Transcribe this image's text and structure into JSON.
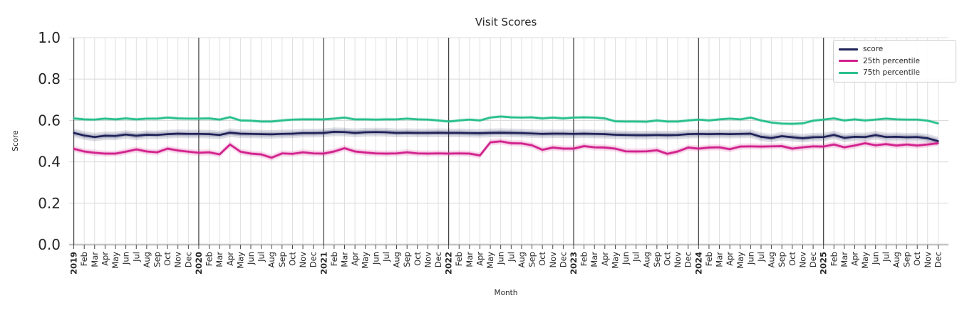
{
  "colors": {
    "background": "#ffffff",
    "grid": "#dcdcdc",
    "year_gridline": "#3c3c3c",
    "axis_baseline": "#c4c4c4",
    "tick_mark": "#333333",
    "text": "#262626",
    "legend_border": "#cccccc"
  },
  "chart_data": {
    "type": "line",
    "title": "Visit Scores",
    "xlabel": "Month",
    "ylabel": "Score",
    "ylim": [
      0.0,
      1.0
    ],
    "grid": true,
    "legend_position": "upper right",
    "y_ticks": [
      0.0,
      0.2,
      0.4,
      0.6,
      0.8,
      1.0
    ],
    "y_tick_labels": [
      "0.0",
      "0.2",
      "0.4",
      "0.6",
      "0.8",
      "1.0"
    ],
    "year_start_indices": [
      0,
      12,
      24,
      36,
      48,
      60,
      72
    ],
    "x_tick_labels": [
      "2019",
      "Feb",
      "Mar",
      "Apr",
      "May",
      "Jun",
      "Jul",
      "Aug",
      "Sep",
      "Oct",
      "Nov",
      "Dec",
      "2020",
      "Feb",
      "Mar",
      "Apr",
      "May",
      "Jun",
      "Jul",
      "Aug",
      "Sep",
      "Oct",
      "Nov",
      "Dec",
      "2021",
      "Feb",
      "Mar",
      "Apr",
      "May",
      "Jun",
      "Jul",
      "Aug",
      "Sep",
      "Oct",
      "Nov",
      "Dec",
      "2022",
      "Feb",
      "Mar",
      "Apr",
      "May",
      "Jun",
      "Jul",
      "Aug",
      "Sep",
      "Oct",
      "Nov",
      "Dec",
      "2023",
      "Feb",
      "Mar",
      "Apr",
      "May",
      "Jun",
      "Jul",
      "Aug",
      "Sep",
      "Oct",
      "Nov",
      "Dec",
      "2024",
      "Feb",
      "Mar",
      "Apr",
      "May",
      "Jun",
      "Jul",
      "Aug",
      "Sep",
      "Oct",
      "Nov",
      "Dec",
      "2025",
      "Feb",
      "Mar",
      "Apr",
      "May",
      "Jun",
      "Jul",
      "Aug",
      "Sep",
      "Oct",
      "Nov",
      "Dec"
    ],
    "series": [
      {
        "name": "score",
        "color": "#1e2158",
        "band_halfwidth": 0.021,
        "values": [
          0.54,
          0.527,
          0.52,
          0.526,
          0.525,
          0.532,
          0.526,
          0.531,
          0.53,
          0.534,
          0.536,
          0.535,
          0.535,
          0.534,
          0.53,
          0.541,
          0.536,
          0.535,
          0.534,
          0.533,
          0.535,
          0.536,
          0.539,
          0.539,
          0.54,
          0.545,
          0.544,
          0.54,
          0.543,
          0.544,
          0.543,
          0.54,
          0.541,
          0.54,
          0.54,
          0.541,
          0.54,
          0.54,
          0.539,
          0.538,
          0.54,
          0.541,
          0.54,
          0.539,
          0.537,
          0.535,
          0.536,
          0.536,
          0.535,
          0.536,
          0.535,
          0.534,
          0.531,
          0.53,
          0.529,
          0.529,
          0.53,
          0.529,
          0.53,
          0.534,
          0.535,
          0.534,
          0.535,
          0.534,
          0.535,
          0.536,
          0.521,
          0.515,
          0.524,
          0.519,
          0.514,
          0.519,
          0.52,
          0.53,
          0.516,
          0.521,
          0.52,
          0.529,
          0.52,
          0.521,
          0.519,
          0.52,
          0.514,
          0.5
        ]
      },
      {
        "name": "25th percentile",
        "color": "#d2228d",
        "band_halfwidth": 0.015,
        "values": [
          0.463,
          0.45,
          0.444,
          0.44,
          0.44,
          0.449,
          0.46,
          0.45,
          0.446,
          0.464,
          0.455,
          0.449,
          0.444,
          0.446,
          0.436,
          0.484,
          0.449,
          0.44,
          0.436,
          0.42,
          0.441,
          0.439,
          0.446,
          0.441,
          0.44,
          0.45,
          0.466,
          0.45,
          0.445,
          0.441,
          0.44,
          0.441,
          0.446,
          0.441,
          0.44,
          0.441,
          0.44,
          0.441,
          0.44,
          0.431,
          0.494,
          0.499,
          0.49,
          0.489,
          0.48,
          0.458,
          0.469,
          0.464,
          0.464,
          0.476,
          0.47,
          0.469,
          0.464,
          0.451,
          0.45,
          0.451,
          0.456,
          0.439,
          0.45,
          0.469,
          0.464,
          0.469,
          0.47,
          0.461,
          0.474,
          0.475,
          0.474,
          0.475,
          0.476,
          0.464,
          0.47,
          0.475,
          0.474,
          0.484,
          0.47,
          0.479,
          0.49,
          0.48,
          0.486,
          0.479,
          0.484,
          0.479,
          0.484,
          0.49
        ]
      },
      {
        "name": "75th percentile",
        "color": "#28bf8e",
        "band_halfwidth": 0.009,
        "values": [
          0.61,
          0.605,
          0.604,
          0.609,
          0.605,
          0.61,
          0.605,
          0.609,
          0.609,
          0.614,
          0.61,
          0.609,
          0.609,
          0.61,
          0.604,
          0.616,
          0.6,
          0.599,
          0.595,
          0.595,
          0.6,
          0.604,
          0.605,
          0.605,
          0.605,
          0.609,
          0.614,
          0.605,
          0.605,
          0.604,
          0.605,
          0.605,
          0.609,
          0.605,
          0.604,
          0.6,
          0.595,
          0.6,
          0.604,
          0.6,
          0.614,
          0.619,
          0.615,
          0.614,
          0.615,
          0.61,
          0.614,
          0.61,
          0.614,
          0.615,
          0.614,
          0.61,
          0.596,
          0.595,
          0.595,
          0.594,
          0.6,
          0.595,
          0.595,
          0.6,
          0.604,
          0.6,
          0.605,
          0.609,
          0.605,
          0.614,
          0.6,
          0.59,
          0.585,
          0.584,
          0.586,
          0.599,
          0.604,
          0.61,
          0.6,
          0.605,
          0.6,
          0.604,
          0.609,
          0.605,
          0.604,
          0.604,
          0.599,
          0.586
        ]
      }
    ]
  }
}
